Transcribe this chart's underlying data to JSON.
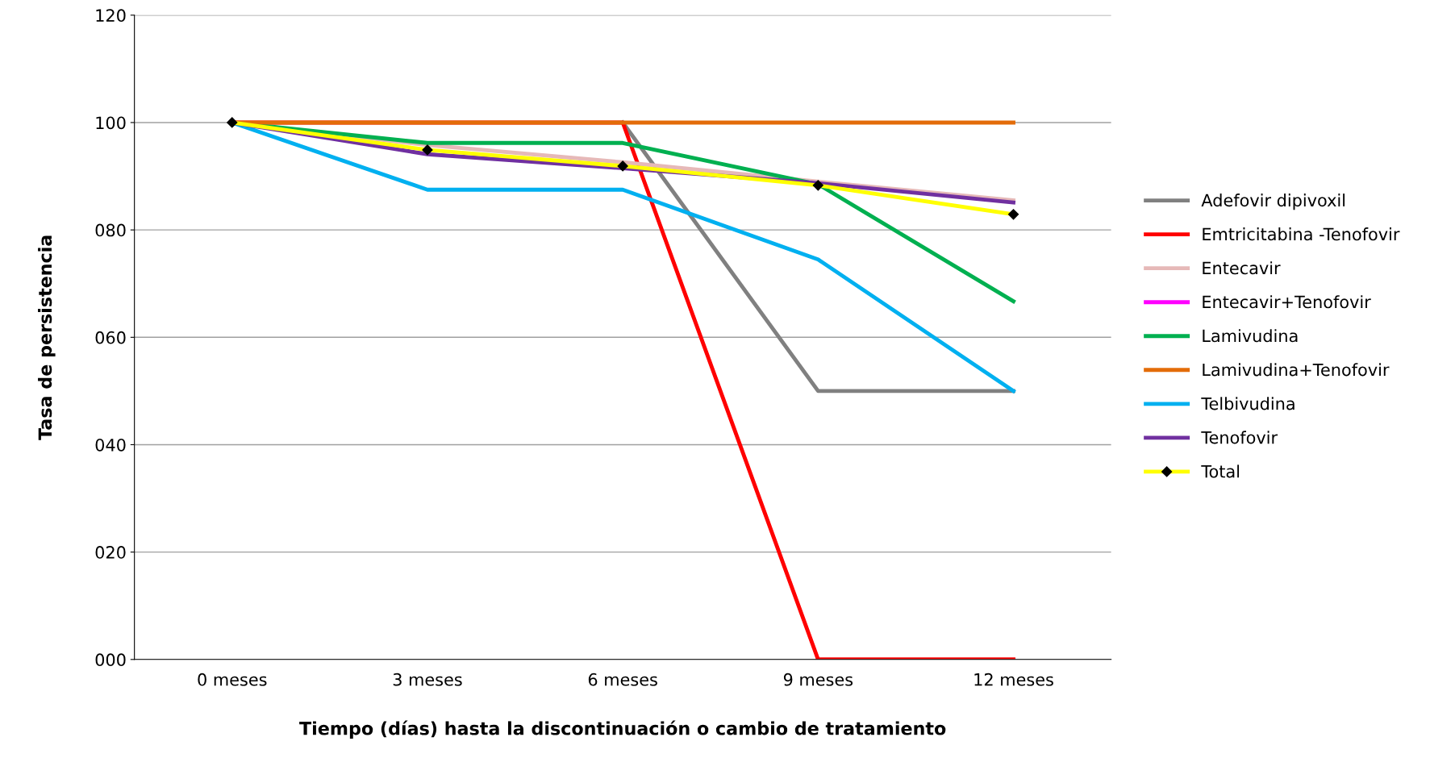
{
  "chart_data": {
    "type": "line",
    "xlabel": "Tiempo (días) hasta la discontinuación o cambio de tratamiento",
    "ylabel": "Tasa de persistencia",
    "categories": [
      "0 meses",
      "3 meses",
      "6 meses",
      "9 meses",
      "12 meses"
    ],
    "ylim": [
      0,
      120
    ],
    "yticks": [
      {
        "value": 0,
        "label": "000"
      },
      {
        "value": 20,
        "label": "020"
      },
      {
        "value": 40,
        "label": "040"
      },
      {
        "value": 60,
        "label": "060"
      },
      {
        "value": 80,
        "label": "080"
      },
      {
        "value": 100,
        "label": "100"
      },
      {
        "value": 120,
        "label": "120"
      }
    ],
    "grid": "y",
    "legend": "right",
    "series": [
      {
        "name": "Adefovir dipivoxil",
        "color": "#808080",
        "values": [
          null,
          null,
          100,
          50,
          50
        ]
      },
      {
        "name": "Emtricitabina -Tenofovir",
        "color": "#ff0000",
        "values": [
          100,
          100,
          100,
          0,
          0
        ]
      },
      {
        "name": "Entecavir",
        "color": "#e6b9b8",
        "values": [
          100,
          95.8,
          92.6,
          89,
          85.5
        ]
      },
      {
        "name": "Entecavir+Tenofovir",
        "color": "#ff00ff",
        "values": [
          null,
          null,
          null,
          null,
          null
        ]
      },
      {
        "name": "Lamivudina",
        "color": "#00b050",
        "values": [
          100,
          96.2,
          96.2,
          88.5,
          66.7
        ]
      },
      {
        "name": "Lamivudina+Tenofovir",
        "color": "#e36c09",
        "values": [
          100,
          100,
          100,
          100,
          100
        ]
      },
      {
        "name": "Telbivudina",
        "color": "#00b0f0",
        "values": [
          100,
          87.5,
          87.5,
          74.5,
          50
        ]
      },
      {
        "name": "Tenofovir",
        "color": "#7030a0",
        "values": [
          100,
          94.1,
          91.5,
          88.7,
          85.1
        ]
      },
      {
        "name": "Total",
        "color": "#ffff00",
        "values": [
          100,
          94.9,
          91.9,
          88.3,
          82.9
        ],
        "marker": "diamond"
      }
    ]
  }
}
